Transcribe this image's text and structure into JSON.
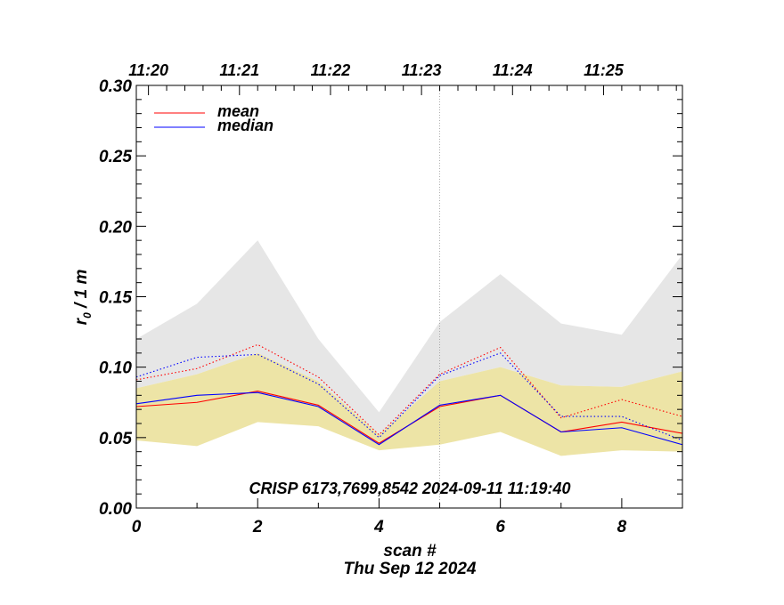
{
  "chart_data": {
    "type": "line",
    "xlabel": "scan #",
    "ylabel_main": "r",
    "ylabel_sub": "0",
    "ylabel_rest": " / 1 m",
    "date_label": "Thu Sep 12 2024",
    "annotation": "CRISP 6173,7699,8542 2024-09-11 11:19:40",
    "xlim": [
      0,
      9
    ],
    "ylim": [
      0.0,
      0.3
    ],
    "x_ticks": [
      0,
      2,
      4,
      6,
      8
    ],
    "x_tick_labels": [
      "0",
      "2",
      "4",
      "6",
      "8"
    ],
    "y_ticks": [
      0.0,
      0.05,
      0.1,
      0.15,
      0.2,
      0.25,
      0.3
    ],
    "y_tick_labels": [
      "0.00",
      "0.05",
      "0.10",
      "0.15",
      "0.20",
      "0.25",
      "0.30"
    ],
    "top_axis": {
      "ticks": [
        0.2,
        1.7,
        3.2,
        4.7,
        6.2,
        7.7
      ],
      "labels": [
        "11:20",
        "11:21",
        "11:22",
        "11:23",
        "11:24",
        "11:25"
      ]
    },
    "vertical_marker_x": 5,
    "x": [
      0,
      1,
      2,
      3,
      4,
      5,
      6,
      7,
      8,
      9
    ],
    "bands": [
      {
        "color": "#e6e6e6",
        "lower": [
          0.085,
          0.095,
          0.11,
          0.09,
          0.052,
          0.09,
          0.1,
          0.087,
          0.086,
          0.097
        ],
        "upper": [
          0.12,
          0.145,
          0.19,
          0.12,
          0.068,
          0.132,
          0.166,
          0.131,
          0.123,
          0.18
        ]
      },
      {
        "color": "#ede4a6",
        "lower": [
          0.048,
          0.044,
          0.061,
          0.058,
          0.041,
          0.045,
          0.054,
          0.037,
          0.041,
          0.04
        ],
        "upper": [
          0.085,
          0.095,
          0.11,
          0.09,
          0.052,
          0.09,
          0.1,
          0.087,
          0.086,
          0.097
        ]
      }
    ],
    "series": [
      {
        "name": "mean",
        "color": "#ff0000",
        "style": "solid",
        "values": [
          0.072,
          0.075,
          0.083,
          0.073,
          0.046,
          0.072,
          0.08,
          0.054,
          0.061,
          0.053
        ]
      },
      {
        "name": "median",
        "color": "#0000ff",
        "style": "solid",
        "values": [
          0.074,
          0.08,
          0.082,
          0.072,
          0.045,
          0.073,
          0.08,
          0.054,
          0.057,
          0.045
        ]
      },
      {
        "color": "#ff0000",
        "style": "dotted",
        "values": [
          0.091,
          0.099,
          0.116,
          0.093,
          0.052,
          0.095,
          0.114,
          0.064,
          0.077,
          0.065
        ]
      },
      {
        "color": "#0000ff",
        "style": "dotted",
        "values": [
          0.093,
          0.107,
          0.109,
          0.088,
          0.05,
          0.094,
          0.11,
          0.065,
          0.065,
          0.048
        ]
      }
    ],
    "legend": {
      "placement": "top-left",
      "entries": [
        "mean",
        "median"
      ]
    }
  }
}
